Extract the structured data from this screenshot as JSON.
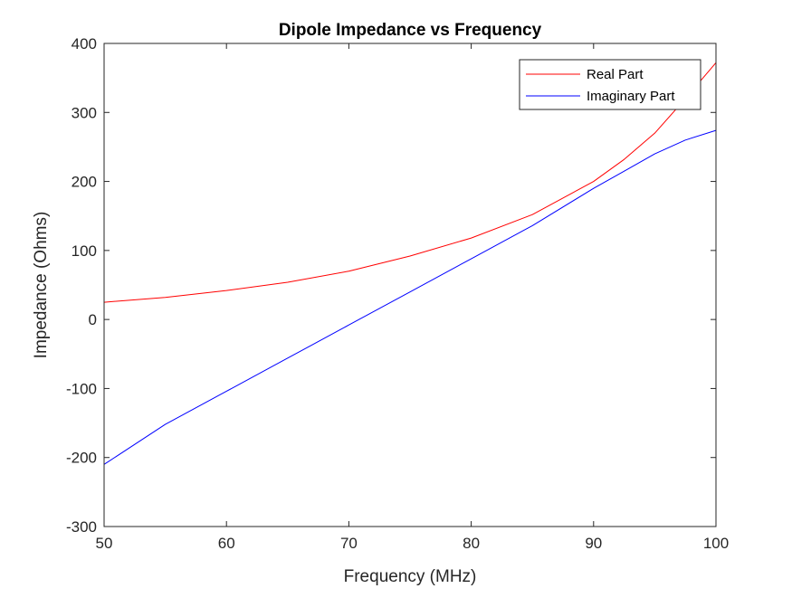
{
  "chart_data": {
    "type": "line",
    "title": "Dipole Impedance vs Frequency",
    "xlabel": "Frequency (MHz)",
    "ylabel": "Impedance (Ohms)",
    "xlim": [
      50,
      100
    ],
    "ylim": [
      -300,
      400
    ],
    "xticks": [
      50,
      60,
      70,
      80,
      90,
      100
    ],
    "yticks": [
      -300,
      -200,
      -100,
      0,
      100,
      200,
      300,
      400
    ],
    "xtick_labels": [
      "50",
      "60",
      "70",
      "80",
      "90",
      "100"
    ],
    "ytick_labels": [
      "-300",
      "-200",
      "-100",
      "0",
      "100",
      "200",
      "300",
      "400"
    ],
    "grid": false,
    "legend_position": "top-right",
    "x": [
      50,
      55,
      60,
      65,
      70,
      75,
      80,
      85,
      90,
      92.5,
      95,
      97.5,
      100
    ],
    "series": [
      {
        "name": "Real Part",
        "color": "#ff0000",
        "values": [
          25,
          32,
          42,
          54,
          70,
          92,
          118,
          152,
          200,
          232,
          270,
          320,
          372
        ]
      },
      {
        "name": "Imaginary Part",
        "color": "#0000ff",
        "values": [
          -210,
          -152,
          -104,
          -56,
          -8,
          40,
          88,
          136,
          190,
          215,
          240,
          260,
          274
        ]
      }
    ]
  }
}
